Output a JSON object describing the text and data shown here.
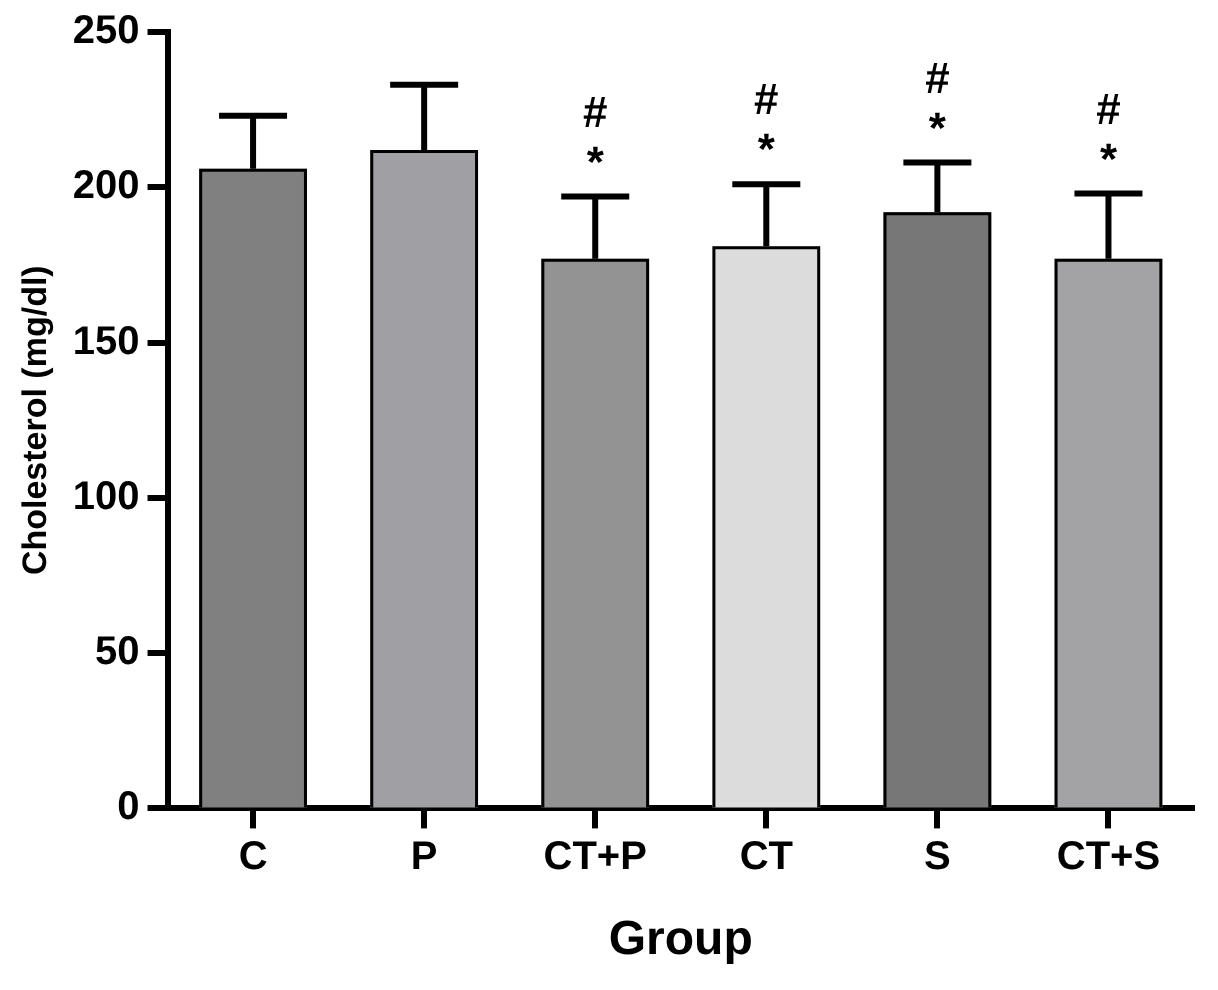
{
  "chart_data": {
    "type": "bar",
    "xlabel": "Group",
    "ylabel": "Cholesterol (mg/dl)",
    "categories": [
      "C",
      "P",
      "CT+P",
      "CT",
      "S",
      "CT+S"
    ],
    "values": [
      206,
      212,
      177,
      181,
      192,
      177
    ],
    "colors": [
      "#808080",
      "#a0a0a4",
      "#939393",
      "#dcdcdc",
      "#777777",
      "#a3a3a6"
    ],
    "errors": [
      [
        206,
        223
      ],
      [
        212,
        233
      ],
      [
        177,
        197
      ],
      [
        181,
        201
      ],
      [
        192,
        208
      ],
      [
        177,
        198
      ]
    ],
    "ylim": [
      0,
      250
    ],
    "yticks": [
      0,
      50,
      100,
      150,
      200,
      250
    ],
    "grid": false,
    "legend": false,
    "annotations": [
      "#\n*",
      "#\n*",
      "#\n*",
      "#\n*"
    ]
  }
}
